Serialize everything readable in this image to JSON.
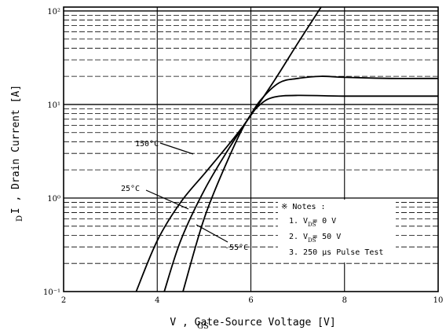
{
  "chart_data": {
    "type": "line",
    "xlabel": "V  , Gate-Source Voltage  [V]",
    "xlabel_subscript": "GS",
    "ylabel": "I  , Drain Current  [A]",
    "ylabel_subscript": "D",
    "x_scale": "linear",
    "y_scale": "log",
    "xlim": [
      2,
      10
    ],
    "ylim": [
      0.1,
      110
    ],
    "x_ticks": [
      2,
      4,
      6,
      8,
      10
    ],
    "x_tick_labels": [
      "2",
      "4",
      "6",
      "8",
      "10"
    ],
    "y_ticks": [
      0.1,
      1,
      10,
      100
    ],
    "y_tick_labels": [
      "10⁻¹",
      "10⁰",
      "10¹",
      "10²"
    ],
    "grid": true,
    "series": [
      {
        "name": "150°C",
        "points": [
          [
            3.55,
            0.1
          ],
          [
            4.0,
            0.35
          ],
          [
            4.5,
            0.9
          ],
          [
            5.0,
            1.8
          ],
          [
            5.5,
            3.6
          ],
          [
            5.9,
            6.5
          ],
          [
            6.5,
            18
          ],
          [
            7.0,
            45
          ],
          [
            7.5,
            110
          ]
        ]
      },
      {
        "name": "25°C",
        "points": [
          [
            4.15,
            0.1
          ],
          [
            4.5,
            0.35
          ],
          [
            5.0,
            1.2
          ],
          [
            5.5,
            3.2
          ],
          [
            5.9,
            6.5
          ],
          [
            6.2,
            11
          ],
          [
            6.6,
            17
          ],
          [
            7.0,
            19
          ],
          [
            7.5,
            20
          ],
          [
            8.0,
            19.5
          ],
          [
            9.0,
            19
          ],
          [
            10,
            19
          ]
        ]
      },
      {
        "name": "-55°C",
        "points": [
          [
            4.55,
            0.1
          ],
          [
            5.0,
            0.6
          ],
          [
            5.5,
            2.5
          ],
          [
            5.9,
            6.5
          ],
          [
            6.2,
            10
          ],
          [
            6.5,
            12
          ],
          [
            7.0,
            12.5
          ],
          [
            8.0,
            12.3
          ],
          [
            9.0,
            12.3
          ],
          [
            10,
            12.3
          ]
        ]
      }
    ],
    "annotations": [
      {
        "text": "150°C",
        "target_series": "150°C"
      },
      {
        "text": "25°C",
        "target_series": "25°C"
      },
      {
        "text": "-55°C",
        "target_series": "-55°C"
      }
    ],
    "notes": {
      "title": "※ Notes :",
      "items": [
        "1. V   = 0 V",
        "2. V   = 50 V",
        "3. 250 μs Pulse Test"
      ],
      "item_subscripts": [
        "DS",
        "DS",
        ""
      ]
    }
  }
}
